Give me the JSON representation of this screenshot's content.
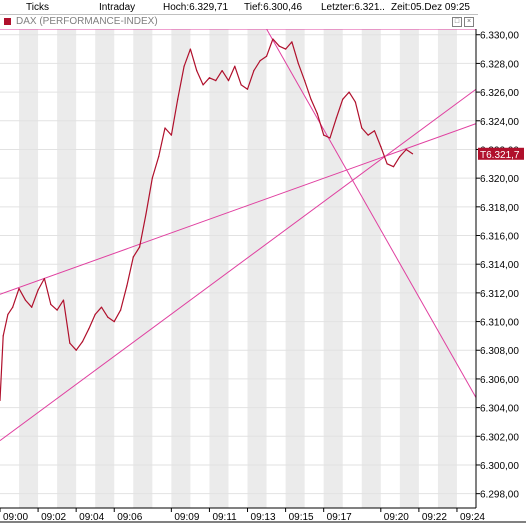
{
  "toolbar": {
    "ticks_label": "Ticks",
    "intraday_label": "Intraday",
    "hoch": "Hoch:6.329,71",
    "tief": "Tief:6.300,46",
    "letzter": "Letzter:6.321..",
    "zeit": "Zeit:05.Dez 09:25"
  },
  "window": {
    "title": "DAX (PERFORMANCE-INDEX)"
  },
  "colors": {
    "line": "#b0102c",
    "trend": "#e040a0",
    "grid_band": "#ebebeb",
    "last_price_bg": "#b0102c"
  },
  "chart_data": {
    "type": "line",
    "title": "DAX (PERFORMANCE-INDEX)",
    "last_price_label": "T6.321,7",
    "last_price": 6321.7,
    "ylim": [
      6297.0,
      6330.4
    ],
    "x_start": "09:00",
    "x_end": "09:25",
    "y_ticks": [
      {
        "v": 6330,
        "label": "6.330,00"
      },
      {
        "v": 6328,
        "label": "6.328,00"
      },
      {
        "v": 6326,
        "label": "6.326,00"
      },
      {
        "v": 6324,
        "label": "6.324,00"
      },
      {
        "v": 6322,
        "label": "6.322,00"
      },
      {
        "v": 6320,
        "label": "6.320,00"
      },
      {
        "v": 6318,
        "label": "6.318,00"
      },
      {
        "v": 6316,
        "label": "6.316,00"
      },
      {
        "v": 6314,
        "label": "6.314,00"
      },
      {
        "v": 6312,
        "label": "6.312,00"
      },
      {
        "v": 6310,
        "label": "6.310,00"
      },
      {
        "v": 6308,
        "label": "6.308,00"
      },
      {
        "v": 6306,
        "label": "6.306,00"
      },
      {
        "v": 6304,
        "label": "6.304,00"
      },
      {
        "v": 6302,
        "label": "6.302,00"
      },
      {
        "v": 6300,
        "label": "6.300,00"
      },
      {
        "v": 6298,
        "label": "6.298,00"
      }
    ],
    "x_ticks": [
      {
        "t": "09:00",
        "label": "09:00"
      },
      {
        "t": "09:02",
        "label": "09:02"
      },
      {
        "t": "09:04",
        "label": "09:04"
      },
      {
        "t": "09:06",
        "label": "09:06"
      },
      {
        "t": "09:09",
        "label": "09:09"
      },
      {
        "t": "09:11",
        "label": "09:11"
      },
      {
        "t": "09:13",
        "label": "09:13"
      },
      {
        "t": "09:15",
        "label": "09:15"
      },
      {
        "t": "09:17",
        "label": "09:17"
      },
      {
        "t": "09:20",
        "label": "09:20"
      },
      {
        "t": "09:22",
        "label": "09:22"
      },
      {
        "t": "09:24",
        "label": "09:24"
      }
    ],
    "series": [
      {
        "points": [
          [
            "09:00:00",
            6304.5
          ],
          [
            "09:00:10",
            6309.0
          ],
          [
            "09:00:25",
            6310.5
          ],
          [
            "09:00:40",
            6311.0
          ],
          [
            "09:01:00",
            6312.3
          ],
          [
            "09:01:20",
            6311.5
          ],
          [
            "09:01:40",
            6311.0
          ],
          [
            "09:02:00",
            6312.2
          ],
          [
            "09:02:20",
            6313.0
          ],
          [
            "09:02:40",
            6311.2
          ],
          [
            "09:03:00",
            6310.8
          ],
          [
            "09:03:20",
            6311.5
          ],
          [
            "09:03:40",
            6308.5
          ],
          [
            "09:04:00",
            6308.0
          ],
          [
            "09:04:20",
            6308.6
          ],
          [
            "09:04:40",
            6309.5
          ],
          [
            "09:05:00",
            6310.5
          ],
          [
            "09:05:20",
            6311.0
          ],
          [
            "09:05:40",
            6310.3
          ],
          [
            "09:06:00",
            6310.0
          ],
          [
            "09:06:20",
            6310.8
          ],
          [
            "09:06:40",
            6312.5
          ],
          [
            "09:07:00",
            6314.5
          ],
          [
            "09:07:20",
            6315.2
          ],
          [
            "09:07:40",
            6317.5
          ],
          [
            "09:08:00",
            6320.0
          ],
          [
            "09:08:20",
            6321.5
          ],
          [
            "09:08:40",
            6323.5
          ],
          [
            "09:09:00",
            6323.0
          ],
          [
            "09:09:20",
            6325.5
          ],
          [
            "09:09:40",
            6327.8
          ],
          [
            "09:10:00",
            6329.0
          ],
          [
            "09:10:20",
            6327.5
          ],
          [
            "09:10:40",
            6326.5
          ],
          [
            "09:11:00",
            6327.0
          ],
          [
            "09:11:20",
            6326.8
          ],
          [
            "09:11:40",
            6327.5
          ],
          [
            "09:12:00",
            6326.8
          ],
          [
            "09:12:20",
            6327.8
          ],
          [
            "09:12:40",
            6326.5
          ],
          [
            "09:13:00",
            6326.2
          ],
          [
            "09:13:20",
            6327.5
          ],
          [
            "09:13:40",
            6328.2
          ],
          [
            "09:14:00",
            6328.5
          ],
          [
            "09:14:20",
            6329.7
          ],
          [
            "09:14:40",
            6329.2
          ],
          [
            "09:15:00",
            6329.0
          ],
          [
            "09:15:20",
            6329.5
          ],
          [
            "09:15:40",
            6328.0
          ],
          [
            "09:16:00",
            6326.8
          ],
          [
            "09:16:20",
            6325.5
          ],
          [
            "09:16:40",
            6324.5
          ],
          [
            "09:17:00",
            6323.0
          ],
          [
            "09:17:20",
            6322.8
          ],
          [
            "09:17:40",
            6324.2
          ],
          [
            "09:18:00",
            6325.5
          ],
          [
            "09:18:20",
            6326.0
          ],
          [
            "09:18:40",
            6325.3
          ],
          [
            "09:19:00",
            6323.5
          ],
          [
            "09:19:20",
            6323.0
          ],
          [
            "09:19:40",
            6323.3
          ],
          [
            "09:20:00",
            6322.2
          ],
          [
            "09:20:20",
            6321.0
          ],
          [
            "09:20:40",
            6320.8
          ],
          [
            "09:21:00",
            6321.5
          ],
          [
            "09:21:20",
            6322.0
          ],
          [
            "09:21:40",
            6321.7
          ]
        ]
      }
    ],
    "trendlines": [
      {
        "from": [
          "09:00:00",
          6311.9
        ],
        "to": [
          "09:25:00",
          6323.8
        ]
      },
      {
        "from": [
          "09:00:00",
          6301.7
        ],
        "to": [
          "09:25:00",
          6326.2
        ]
      },
      {
        "from": [
          "09:14:00",
          6330.4
        ],
        "to": [
          "09:25:00",
          6304.7
        ]
      },
      {
        "from": [
          "09:00:00",
          6330.4
        ],
        "to": [
          "09:25:00",
          6330.4
        ]
      }
    ]
  }
}
